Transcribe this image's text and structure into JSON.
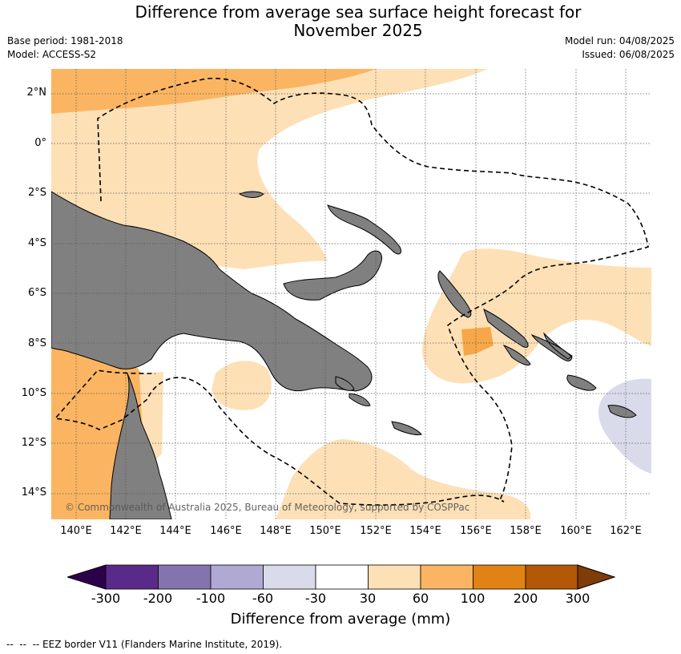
{
  "title_line1": "Difference from average sea surface height forecast for",
  "title_line2": "November 2025",
  "base_period": "Base period: 1981-2018",
  "model": "Model: ACCESS-S2",
  "model_run": "Model run: 04/08/2025",
  "issued": "Issued: 06/08/2025",
  "copyright": "© Commonwealth of Australia 2025, Bureau of Meteorology, supported by COSPPac",
  "lat_labels": [
    "2°N",
    "0°",
    "2°S",
    "4°S",
    "6°S",
    "8°S",
    "10°S",
    "12°S",
    "14°S"
  ],
  "lon_labels": [
    "140°E",
    "142°E",
    "144°E",
    "146°E",
    "148°E",
    "150°E",
    "152°E",
    "154°E",
    "156°E",
    "158°E",
    "160°E",
    "162°E"
  ],
  "colorbar": {
    "label": "Difference from average (mm)",
    "ticks": [
      "-300",
      "-200",
      "-100",
      "-60",
      "-30",
      "30",
      "60",
      "100",
      "200",
      "300"
    ],
    "colors": [
      "#5a2a8a",
      "#8474ae",
      "#b0a9d3",
      "#d9dbeb",
      "#ffffff",
      "#fde0b6",
      "#fbb562",
      "#e08214",
      "#b35806"
    ],
    "under_color": "#2d004b",
    "over_color": "#7f3b08"
  },
  "colors": {
    "land": "#808080",
    "light_orange": "#fde0b6",
    "mid_orange": "#fbb562",
    "darker_orange": "#f7a748",
    "light_purple": "#d9dbeb"
  },
  "footnote": "--  --  -- EEZ border V11 (Flanders Marine Institute, 2019)."
}
